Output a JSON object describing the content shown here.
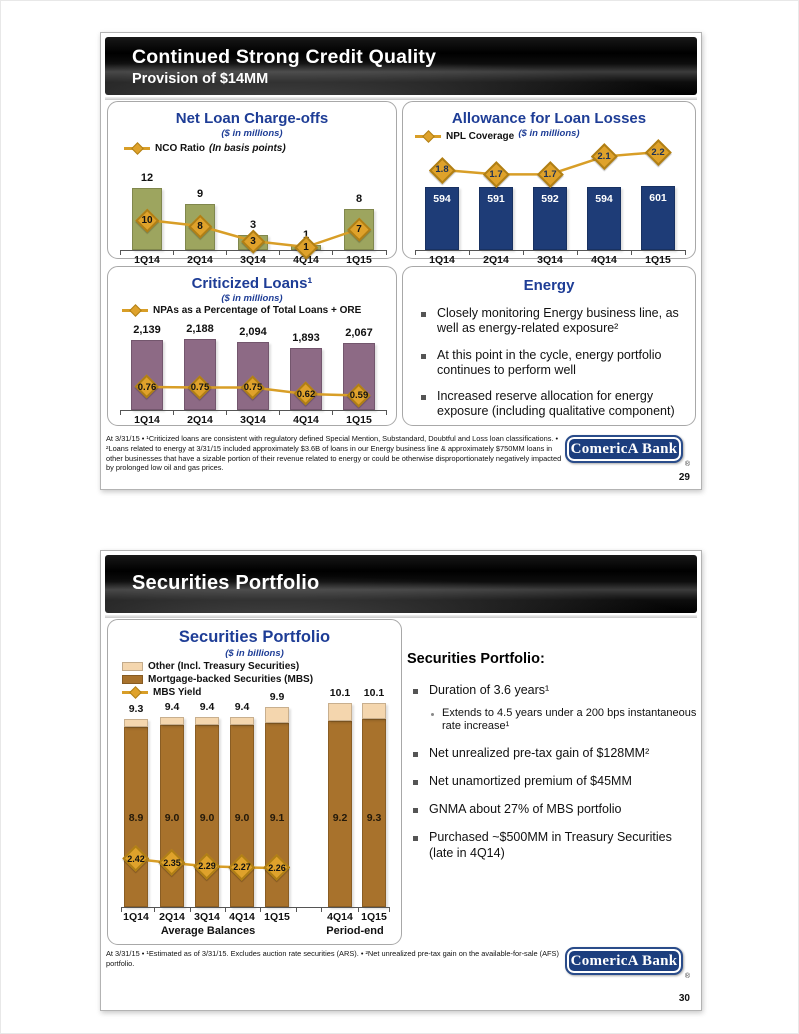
{
  "colors": {
    "accent_navy": "#1E3D96",
    "logo_navy": "#1C3E7E",
    "gold_line": "#D89E27",
    "gold_diamond": "#DFA22B",
    "olive_bar": "#9DA55F",
    "navy_bar": "#1E3C77",
    "mauve_bar": "#8D6A85",
    "brown_bar": "#A8722C",
    "tan_bar": "#F4D6AE"
  },
  "slide1": {
    "header": {
      "title": "Continued Strong Credit Quality",
      "subtitle": "Provision of $14MM"
    },
    "panels": {
      "nco": {
        "title": "Net Loan Charge-offs",
        "subtitle": "($ in millions)",
        "legend_label": "NCO Ratio",
        "legend_note": "(In basis points)"
      },
      "allowance": {
        "title": "Allowance for Loan Losses",
        "subtitle": "($ in millions)",
        "legend_label": "NPL Coverage"
      },
      "criticized": {
        "title": "Criticized Loans¹",
        "subtitle": "($ in millions)",
        "legend_label": "NPAs as a Percentage of Total Loans + ORE"
      },
      "energy": {
        "title": "Energy",
        "bullets": [
          "Closely monitoring Energy business line, as well as energy-related exposure²",
          "At this point in the cycle, energy portfolio continues to perform well",
          "Increased reserve allocation for energy exposure (including qualitative component)"
        ]
      }
    },
    "footnote": "At 3/31/15 • ¹Criticized loans are consistent with regulatory defined Special Mention, Substandard, Doubtful and Loss loan classifications. • ²Loans related to energy at 3/31/15 included approximately $3.6B of loans in our Energy business line & approximately $750MM loans in other businesses that have a sizable portion of their revenue related to energy or could be otherwise disproportionately negatively impacted by prolonged low oil and gas prices.",
    "logo": {
      "text": "ComericA Bank",
      "reg": "®"
    },
    "page_number": "29"
  },
  "slide2": {
    "header": {
      "title": "Securities Portfolio"
    },
    "chart_panel": {
      "title": "Securities Portfolio",
      "subtitle": "($ in billions)",
      "legend": [
        "Other (Incl. Treasury Securities)",
        "Mortgage-backed Securities (MBS)",
        "MBS Yield"
      ]
    },
    "text_panel": {
      "heading": "Securities Portfolio:",
      "bullet1": "Duration of 3.6 years¹",
      "sub_bullet1": "Extends to 4.5 years under a 200 bps instantaneous rate increase¹",
      "bullet2": "Net unrealized pre-tax gain of $128MM²",
      "bullet3": "Net unamortized premium of $45MM",
      "bullet4": "GNMA about 27% of MBS portfolio",
      "bullet5": "Purchased ~$500MM in Treasury Securities (late in 4Q14)"
    },
    "footnote": "At 3/31/15 • ¹Estimated as of 3/31/15.  Excludes auction rate securities (ARS). • ²Net unrealized pre-tax gain on the available-for-sale (AFS) portfolio.",
    "logo": {
      "text": "ComericA Bank",
      "reg": "®"
    },
    "page_number": "30"
  },
  "chart_data": [
    {
      "id": "net-loan-charge-offs",
      "type": "bar",
      "title": "Net Loan Charge-offs",
      "subtitle": "($ in millions)",
      "categories": [
        "1Q14",
        "2Q14",
        "3Q14",
        "4Q14",
        "1Q15"
      ],
      "bars": {
        "name": "Net loan charge-offs ($MM)",
        "values": [
          12,
          9,
          3,
          1,
          8
        ],
        "labels": [
          "12",
          "9",
          "3",
          "1",
          "8"
        ],
        "color": "#9DA55F"
      },
      "line": {
        "name": "NCO Ratio (In basis points)",
        "values": [
          10,
          8,
          3,
          1,
          7
        ],
        "labels": [
          "10",
          "8",
          "3",
          "1",
          "7"
        ],
        "color": "#D89E27"
      },
      "ylim": [
        0,
        14
      ],
      "legend_position": "top-left",
      "grid": false
    },
    {
      "id": "allowance-for-loan-losses",
      "type": "bar",
      "title": "Allowance for Loan Losses",
      "subtitle": "($ in millions)",
      "categories": [
        "1Q14",
        "2Q14",
        "3Q14",
        "4Q14",
        "1Q15"
      ],
      "bars": {
        "name": "Allowance for loan losses ($MM)",
        "values": [
          594,
          591,
          592,
          594,
          601
        ],
        "labels": [
          "594",
          "591",
          "592",
          "594",
          "601"
        ],
        "color": "#1E3C77",
        "label_color": "#ffffff"
      },
      "line": {
        "name": "NPL Coverage",
        "values": [
          1.8,
          1.7,
          1.7,
          2.1,
          2.2
        ],
        "labels": [
          "1.8",
          "1.7",
          "1.7",
          "2.1",
          "2.2"
        ],
        "color": "#D89E27"
      },
      "ylim": [
        0,
        660
      ],
      "legend_position": "top-left",
      "grid": false
    },
    {
      "id": "criticized-loans",
      "type": "bar",
      "title": "Criticized Loans¹",
      "subtitle": "($ in millions)",
      "categories": [
        "1Q14",
        "2Q14",
        "3Q14",
        "4Q14",
        "1Q15"
      ],
      "bars": {
        "name": "Criticized loans ($MM)",
        "values": [
          2139,
          2188,
          2094,
          1893,
          2067
        ],
        "labels": [
          "2,139",
          "2,188",
          "2,094",
          "1,893",
          "2,067"
        ],
        "color": "#8D6A85"
      },
      "line": {
        "name": "NPAs as a Percentage of Total Loans + ORE",
        "values": [
          0.76,
          0.75,
          0.75,
          0.62,
          0.59
        ],
        "labels": [
          "0.76",
          "0.75",
          "0.75",
          "0.62",
          "0.59"
        ],
        "color": "#D89E27"
      },
      "ylim": [
        0,
        2400
      ],
      "legend_position": "top-left",
      "grid": false
    },
    {
      "id": "securities-portfolio",
      "type": "stacked-bar",
      "title": "Securities Portfolio",
      "subtitle": "($ in billions)",
      "categories": [
        "1Q14",
        "2Q14",
        "3Q14",
        "4Q14",
        "1Q15",
        "4Q14",
        "1Q15"
      ],
      "groups": [
        {
          "label": "Average Balances",
          "span": 5
        },
        {
          "label": "Period-end",
          "span": 2
        }
      ],
      "series": [
        {
          "name": "Mortgage-backed Securities (MBS)",
          "values": [
            8.9,
            9.0,
            9.0,
            9.0,
            9.1,
            9.2,
            9.3
          ],
          "labels": [
            "8.9",
            "9.0",
            "9.0",
            "9.0",
            "9.1",
            "9.2",
            "9.3"
          ],
          "color": "#A8722C"
        },
        {
          "name": "Other (Incl. Treasury Securities)",
          "values": [
            0.4,
            0.4,
            0.4,
            0.4,
            0.8,
            0.9,
            0.8
          ],
          "color": "#F4D6AE"
        }
      ],
      "totals": {
        "values": [
          9.3,
          9.4,
          9.4,
          9.4,
          9.9,
          10.1,
          10.1
        ],
        "labels": [
          "9.3",
          "9.4",
          "9.4",
          "9.4",
          "9.9",
          "10.1",
          "10.1"
        ]
      },
      "line": {
        "name": "MBS Yield",
        "values": [
          2.42,
          2.35,
          2.29,
          2.27,
          2.26
        ],
        "labels": [
          "2.42",
          "2.35",
          "2.29",
          "2.27",
          "2.26"
        ],
        "color": "#D89E27"
      },
      "ylim": [
        0,
        10.6
      ],
      "legend_position": "top-left",
      "grid": false
    }
  ]
}
